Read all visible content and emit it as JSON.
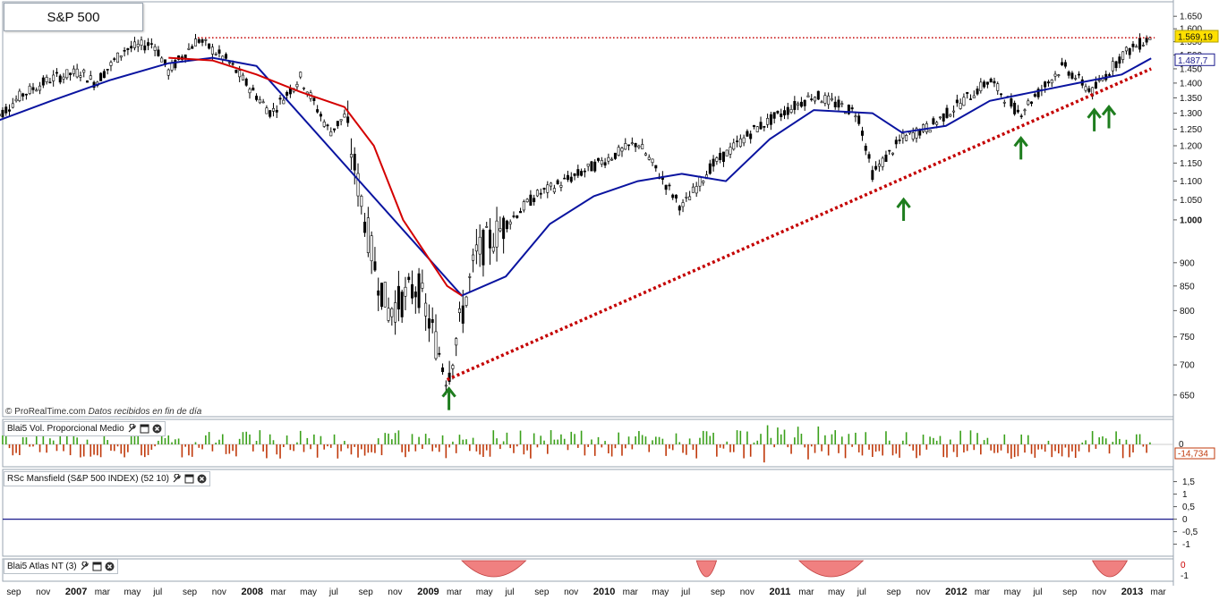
{
  "title": "S&P 500",
  "source": {
    "brand": "© ProRealTime.com",
    "note": "Datos recibidos en fin de día"
  },
  "panels": {
    "volume": {
      "label": "Blai5 Vol. Proporcional Medio",
      "last_value": "-14,734",
      "zero_label": "0"
    },
    "mansfield": {
      "label": "RSc Mansfield (S&P 500 INDEX) (52 10)",
      "ticks": [
        "1,5",
        "1",
        "0,5",
        "0",
        "-0,5",
        "-1"
      ]
    },
    "atlas": {
      "label": "Blai5 Atlas NT (3)",
      "ticks": [
        "0",
        "-1"
      ]
    }
  },
  "icons": [
    "wrench-icon",
    "window-icon",
    "close-icon"
  ],
  "colors": {
    "price_bars": "#000000",
    "ma_red": "#d40000",
    "ma_blue": "#0a14a0",
    "dotted_lines": "#c40000",
    "arrows": "#1e7d1e",
    "vol_pos": "#3aa01a",
    "vol_neg": "#c0390b",
    "mansfield_line": "#1a1a8c",
    "atlas_fill": "#f08080",
    "price_badge": "#ffe000",
    "ma_badge_text": "#1a1a8c"
  },
  "chart_data": {
    "type": "candlestick",
    "y_axis": {
      "ticks": [
        1650,
        1600,
        1550,
        1500,
        1450,
        1400,
        1350,
        1300,
        1250,
        1200,
        1150,
        1100,
        1050,
        1000,
        900,
        850,
        800,
        750,
        700,
        650
      ],
      "tick_labels": [
        "1.650",
        "1.600",
        "1.550",
        "1.500",
        "1.450",
        "1.400",
        "1.350",
        "1.300",
        "1.250",
        "1.200",
        "1.150",
        "1.100",
        "1.050",
        "1.000",
        "900",
        "850",
        "800",
        "750",
        "700",
        "650"
      ],
      "scale": "log",
      "ylim": [
        630,
        1680
      ]
    },
    "x_axis": {
      "labels": [
        "sep",
        "nov",
        "2007",
        "mar",
        "may",
        "jul",
        "sep",
        "nov",
        "2008",
        "mar",
        "may",
        "jul",
        "sep",
        "nov",
        "2009",
        "mar",
        "may",
        "jul",
        "sep",
        "nov",
        "2010",
        "mar",
        "may",
        "jul",
        "sep",
        "nov",
        "2011",
        "mar",
        "may",
        "jul",
        "sep",
        "nov",
        "2012",
        "mar",
        "may",
        "jul",
        "sep",
        "nov",
        "2013",
        "mar"
      ],
      "years": [
        "2007",
        "2008",
        "2009",
        "2010",
        "2011",
        "2012",
        "2013"
      ]
    },
    "last_price": {
      "value": 1569.19,
      "label": "1.569,19"
    },
    "ma_blue_last": {
      "value": 1487.7,
      "label": "1.487,7"
    },
    "close_path": [
      {
        "date": "2006-08",
        "value": 1275
      },
      {
        "date": "2006-10",
        "value": 1360
      },
      {
        "date": "2006-12",
        "value": 1415
      },
      {
        "date": "2007-02",
        "value": 1440
      },
      {
        "date": "2007-03",
        "value": 1400
      },
      {
        "date": "2007-05",
        "value": 1520
      },
      {
        "date": "2007-07",
        "value": 1545
      },
      {
        "date": "2007-08",
        "value": 1440
      },
      {
        "date": "2007-10",
        "value": 1560
      },
      {
        "date": "2007-12",
        "value": 1480
      },
      {
        "date": "2008-03",
        "value": 1300
      },
      {
        "date": "2008-05",
        "value": 1420
      },
      {
        "date": "2008-07",
        "value": 1240
      },
      {
        "date": "2008-08",
        "value": 1290
      },
      {
        "date": "2008-10",
        "value": 900
      },
      {
        "date": "2008-11",
        "value": 800
      },
      {
        "date": "2009-01",
        "value": 850
      },
      {
        "date": "2009-03",
        "value": 680
      },
      {
        "date": "2009-05",
        "value": 920
      },
      {
        "date": "2009-07",
        "value": 990
      },
      {
        "date": "2009-09",
        "value": 1060
      },
      {
        "date": "2009-12",
        "value": 1120
      },
      {
        "date": "2010-04",
        "value": 1210
      },
      {
        "date": "2010-07",
        "value": 1030
      },
      {
        "date": "2010-09",
        "value": 1140
      },
      {
        "date": "2010-12",
        "value": 1250
      },
      {
        "date": "2011-04",
        "value": 1360
      },
      {
        "date": "2011-07",
        "value": 1300
      },
      {
        "date": "2011-08",
        "value": 1120
      },
      {
        "date": "2011-10",
        "value": 1220
      },
      {
        "date": "2011-12",
        "value": 1260
      },
      {
        "date": "2012-04",
        "value": 1410
      },
      {
        "date": "2012-06",
        "value": 1300
      },
      {
        "date": "2012-09",
        "value": 1460
      },
      {
        "date": "2012-11",
        "value": 1370
      },
      {
        "date": "2013-01",
        "value": 1500
      },
      {
        "date": "2013-03",
        "value": 1569
      }
    ],
    "ma_red": [
      {
        "date": "2007-08",
        "value": 1490
      },
      {
        "date": "2007-11",
        "value": 1480
      },
      {
        "date": "2008-02",
        "value": 1430
      },
      {
        "date": "2008-05",
        "value": 1370
      },
      {
        "date": "2008-08",
        "value": 1320
      },
      {
        "date": "2008-10",
        "value": 1200
      },
      {
        "date": "2008-12",
        "value": 1000
      },
      {
        "date": "2009-03",
        "value": 850
      },
      {
        "date": "2009-04",
        "value": 830
      }
    ],
    "ma_blue": [
      {
        "date": "2006-08",
        "value": 1270
      },
      {
        "date": "2006-12",
        "value": 1340
      },
      {
        "date": "2007-04",
        "value": 1410
      },
      {
        "date": "2007-08",
        "value": 1470
      },
      {
        "date": "2007-11",
        "value": 1490
      },
      {
        "date": "2008-02",
        "value": 1460
      },
      {
        "date": "2009-04",
        "value": 830
      },
      {
        "date": "2009-07",
        "value": 870
      },
      {
        "date": "2009-10",
        "value": 990
      },
      {
        "date": "2010-01",
        "value": 1060
      },
      {
        "date": "2010-04",
        "value": 1100
      },
      {
        "date": "2010-07",
        "value": 1120
      },
      {
        "date": "2010-10",
        "value": 1100
      },
      {
        "date": "2011-01",
        "value": 1220
      },
      {
        "date": "2011-04",
        "value": 1310
      },
      {
        "date": "2011-08",
        "value": 1300
      },
      {
        "date": "2011-10",
        "value": 1240
      },
      {
        "date": "2012-01",
        "value": 1260
      },
      {
        "date": "2012-04",
        "value": 1340
      },
      {
        "date": "2012-07",
        "value": 1370
      },
      {
        "date": "2012-10",
        "value": 1400
      },
      {
        "date": "2013-01",
        "value": 1430
      },
      {
        "date": "2013-03",
        "value": 1487.7
      }
    ],
    "trendline_support": [
      {
        "date": "2009-03",
        "value": 675
      },
      {
        "date": "2013-03",
        "value": 1450
      }
    ],
    "horizontal_resistance": {
      "from": "2007-10",
      "to": "2013-03",
      "value": 1565
    },
    "arrows": [
      {
        "date": "2009-03",
        "value": 675
      },
      {
        "date": "2011-10",
        "value": 1075
      },
      {
        "date": "2012-06",
        "value": 1250
      },
      {
        "date": "2012-11",
        "value": 1340
      },
      {
        "date": "2012-12",
        "value": 1350
      }
    ],
    "volume_panel": {
      "type": "bar",
      "zero": 0,
      "last": -14.734
    },
    "mansfield_panel": {
      "type": "line",
      "value": 0,
      "ylim": [
        -1.3,
        1.7
      ]
    },
    "atlas_panel": {
      "type": "area",
      "segments": [
        {
          "from": "2009-04",
          "to": "2009-08"
        },
        {
          "from": "2010-08",
          "to": "2010-09"
        },
        {
          "from": "2011-03",
          "to": "2011-07"
        },
        {
          "from": "2012-11",
          "to": "2013-01"
        }
      ]
    }
  }
}
